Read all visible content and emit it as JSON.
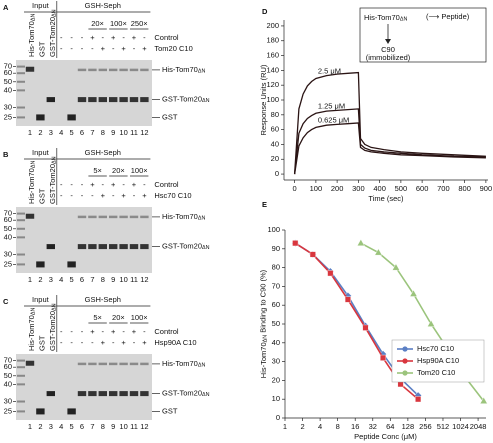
{
  "gel_panels": [
    {
      "letter": "A",
      "input": "Input",
      "pulldown": "GSH-Seph",
      "lane_labels": [
        {
          "text": "His-Tom70",
          "sub": "ΔN"
        },
        {
          "text": "GST"
        },
        {
          "text": "GST-Tom20",
          "sub": "ΔN"
        }
      ],
      "dilutions": [
        "20×",
        "100×",
        "250×"
      ],
      "rows": [
        {
          "label": "Control",
          "signs": [
            "-",
            "-",
            "-",
            "+",
            "-",
            "+",
            "-",
            "+",
            "-"
          ]
        },
        {
          "label": "Tom20 C10",
          "signs": [
            "-",
            "-",
            "-",
            "-",
            "+",
            "-",
            "+",
            "-",
            "+"
          ]
        }
      ],
      "mw": [
        70,
        60,
        50,
        40,
        30,
        25
      ],
      "band_labels": [
        {
          "text": "His-Tom70",
          "sub": "ΔN"
        },
        {
          "text": "GST-Tom20",
          "sub": "ΔN"
        },
        {
          "text": "GST"
        }
      ],
      "lane_numbers": [
        1,
        2,
        3,
        4,
        5,
        6,
        7,
        8,
        9,
        10,
        11,
        12
      ]
    },
    {
      "letter": "B",
      "input": "Input",
      "pulldown": "GSH-Seph",
      "lane_labels": [
        {
          "text": "His-Tom70",
          "sub": "ΔN"
        },
        {
          "text": "GST"
        },
        {
          "text": "GST-Tom20",
          "sub": "ΔN"
        }
      ],
      "dilutions": [
        "5×",
        "20×",
        "100×"
      ],
      "rows": [
        {
          "label": "Control",
          "signs": [
            "-",
            "-",
            "-",
            "+",
            "-",
            "+",
            "-",
            "+",
            "-"
          ]
        },
        {
          "label": "Hsc70 C10",
          "signs": [
            "-",
            "-",
            "-",
            "-",
            "+",
            "-",
            "+",
            "-",
            "+"
          ]
        }
      ],
      "mw": [
        70,
        60,
        50,
        40,
        30,
        25
      ],
      "band_labels": [
        {
          "text": "His-Tom70",
          "sub": "ΔN"
        },
        {
          "text": "GST-Tom20",
          "sub": "ΔN"
        }
      ],
      "lane_numbers": [
        1,
        2,
        3,
        4,
        5,
        6,
        7,
        8,
        9,
        10,
        11,
        12
      ]
    },
    {
      "letter": "C",
      "input": "Input",
      "pulldown": "GSH-Seph",
      "lane_labels": [
        {
          "text": "His-Tom70",
          "sub": "ΔN"
        },
        {
          "text": "GST"
        },
        {
          "text": "GST-Tom20",
          "sub": "ΔN"
        }
      ],
      "dilutions": [
        "5×",
        "20×",
        "100×"
      ],
      "rows": [
        {
          "label": "Control",
          "signs": [
            "-",
            "-",
            "-",
            "+",
            "-",
            "+",
            "-",
            "+",
            "-"
          ]
        },
        {
          "label": "Hsp90A C10",
          "signs": [
            "-",
            "-",
            "-",
            "-",
            "+",
            "-",
            "+",
            "-",
            "+"
          ]
        }
      ],
      "mw": [
        70,
        60,
        50,
        40,
        30,
        25
      ],
      "band_labels": [
        {
          "text": "His-Tom70",
          "sub": "ΔN"
        },
        {
          "text": "GST-Tom20",
          "sub": "ΔN"
        },
        {
          "text": "GST"
        }
      ],
      "lane_numbers": [
        1,
        2,
        3,
        4,
        5,
        6,
        7,
        8,
        9,
        10,
        11,
        12
      ]
    }
  ],
  "chart_data": [
    {
      "type": "line",
      "panel_label": "D",
      "x_label": "Time (sec)",
      "y_label": "Response Units (RU)",
      "inset": {
        "analyte": {
          "text": "His-Tom70",
          "sub": "ΔN"
        },
        "partner": "(⟶ Peptide)",
        "ligand": "C90",
        "ligand_note": "(immobilized)"
      },
      "x": [
        0,
        20,
        40,
        60,
        80,
        100,
        150,
        200,
        250,
        300,
        310,
        330,
        360,
        420,
        500,
        600,
        750,
        900
      ],
      "series": [
        {
          "name": "2.5 μM",
          "color": "#2a1414",
          "values": [
            0,
            88,
            108,
            119,
            125,
            129,
            133,
            135,
            136,
            137,
            48,
            40,
            36,
            33,
            30,
            28,
            26,
            24
          ]
        },
        {
          "name": "1.25 μM",
          "color": "#2a1414",
          "values": [
            0,
            55,
            68,
            75,
            79,
            82,
            85,
            86,
            87,
            88,
            40,
            35,
            32,
            30,
            28,
            26,
            24,
            23
          ]
        },
        {
          "name": "0.625 μM",
          "color": "#2a1414",
          "values": [
            0,
            38,
            49,
            56,
            60,
            63,
            66,
            67,
            68,
            69,
            36,
            32,
            30,
            28,
            26,
            25,
            23,
            22
          ]
        }
      ],
      "xlim": [
        -50,
        910
      ],
      "xticks": [
        0,
        100,
        200,
        300,
        400,
        500,
        600,
        700,
        800,
        900
      ],
      "ylim": [
        -8,
        208
      ],
      "yticks": [
        0,
        20,
        40,
        60,
        80,
        100,
        120,
        140,
        160,
        180,
        200
      ]
    },
    {
      "type": "line",
      "panel_label": "E",
      "x_label": "Peptide Conc (μM)",
      "y_label": {
        "text": "His-Tom70",
        "sub": "ΔN",
        "rest": " Binding to C90 (%)"
      },
      "log_x": 2,
      "legend": "lower right",
      "series": [
        {
          "name": "Hsc70 C10",
          "color": "#5b7fc4",
          "marker": "diamond",
          "x": [
            1.5,
            3,
            6,
            12,
            24,
            48,
            96,
            192
          ],
          "values": [
            93,
            87,
            78,
            65,
            49,
            34,
            21,
            12
          ]
        },
        {
          "name": "Hsp90A C10",
          "color": "#d9363e",
          "marker": "square",
          "x": [
            1.5,
            3,
            6,
            12,
            24,
            48,
            96,
            192
          ],
          "values": [
            93,
            87,
            77,
            63,
            48,
            32,
            18,
            10
          ]
        },
        {
          "name": "Tom20 C10",
          "color": "#9bc47c",
          "marker": "triangle",
          "x": [
            20,
            40,
            80,
            160,
            320,
            640,
            1280,
            2560
          ],
          "values": [
            93,
            88,
            80,
            66,
            50,
            36,
            21,
            9
          ]
        }
      ],
      "xlim": [
        1,
        2800
      ],
      "xticks": [
        1,
        2,
        4,
        8,
        16,
        32,
        64,
        128,
        256,
        512,
        1024,
        2048
      ],
      "ylim": [
        0,
        100
      ],
      "yticks": [
        0,
        10,
        20,
        30,
        40,
        50,
        60,
        70,
        80,
        90,
        100
      ]
    }
  ]
}
